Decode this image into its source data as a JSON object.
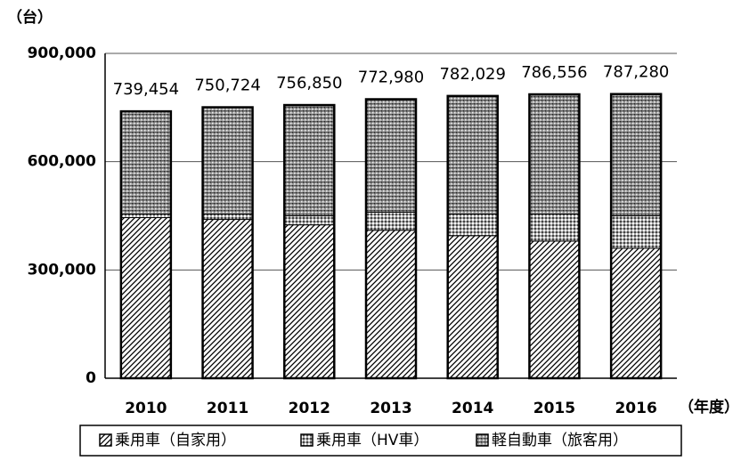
{
  "chart_data": {
    "type": "stacked_bar",
    "y_axis_label": "（台）",
    "x_axis_label": "（年度）",
    "categories": [
      "2010",
      "2011",
      "2012",
      "2013",
      "2014",
      "2015",
      "2016"
    ],
    "series": [
      {
        "name": "乗用車（自家用）",
        "color": "#000000",
        "values": [
          445000,
          440000,
          425000,
          410000,
          395000,
          380000,
          360000
        ]
      },
      {
        "name": "乗用車（HV車）",
        "color": "#444444",
        "values": [
          10000,
          15000,
          25000,
          50000,
          60000,
          75000,
          90000
        ]
      },
      {
        "name": "軽自動車（旅客用）",
        "color": "#222222",
        "values": [
          284000,
          296000,
          307000,
          313000,
          327000,
          332000,
          337000
        ]
      }
    ],
    "totals": [
      739454,
      750724,
      756850,
      772980,
      782029,
      786556,
      787280
    ],
    "total_labels": [
      "739,454",
      "750,724",
      "756,850",
      "772,980",
      "782,029",
      "786,556",
      "787,280"
    ],
    "ylim": [
      0,
      900000
    ],
    "yticks": [
      0,
      {
        "value": 300000,
        "label": "300,000"
      },
      {
        "value": 600000,
        "label": "600,000"
      },
      {
        "value": 900000,
        "label": "900,000"
      }
    ],
    "grid": true
  }
}
